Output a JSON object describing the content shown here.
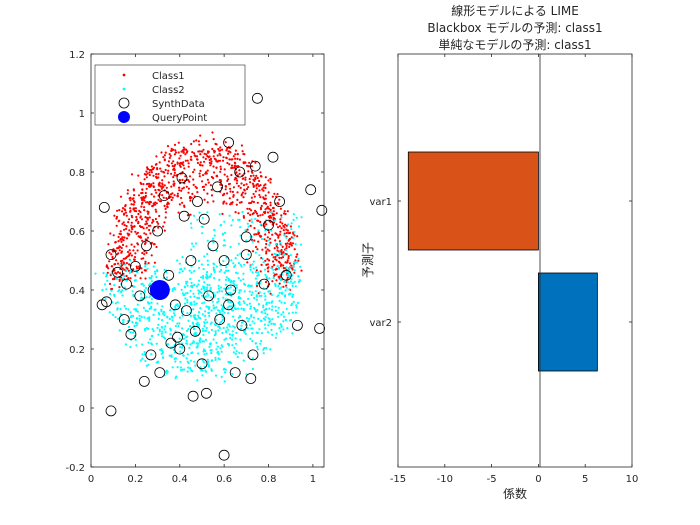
{
  "chart_data": [
    {
      "type": "scatter",
      "title": "",
      "xlabel": "",
      "ylabel": "",
      "xlim": [
        0,
        1.05
      ],
      "ylim": [
        -0.2,
        1.2
      ],
      "xticks": [
        "0",
        "0.2",
        "0.4",
        "0.6",
        "0.8",
        "1"
      ],
      "yticks": [
        "-0.2",
        "0",
        "0.2",
        "0.4",
        "0.6",
        "0.8",
        "1",
        "1.2"
      ],
      "legend": {
        "position": "top-left",
        "entries": [
          "Class1",
          "Class2",
          "SynthData",
          "QueryPoint"
        ]
      },
      "colors": {
        "class1": "#ff0000",
        "class2": "#00ffff",
        "synth": "#000000",
        "query": "#0000ff"
      },
      "series": [
        {
          "name": "Class1",
          "marker": "dot",
          "description_count": 1100
        },
        {
          "name": "Class2",
          "marker": "dot",
          "description_count": 1100
        },
        {
          "name": "SynthData",
          "marker": "open-circle",
          "x": [
            0.06,
            0.09,
            0.75,
            0.99,
            1.04,
            0.05,
            0.07,
            0.93,
            1.03,
            0.6,
            0.09,
            0.46,
            0.52,
            0.62,
            0.85,
            0.8,
            0.7,
            0.55,
            0.45,
            0.35,
            0.28,
            0.22,
            0.15,
            0.18,
            0.4,
            0.5,
            0.65,
            0.72,
            0.3,
            0.25,
            0.38,
            0.58,
            0.68,
            0.42,
            0.48,
            0.33,
            0.2,
            0.12,
            0.88,
            0.78,
            0.63,
            0.53,
            0.43,
            0.36,
            0.27,
            0.57,
            0.67,
            0.74,
            0.82,
            0.47,
            0.39,
            0.31,
            0.24,
            0.16,
            0.6,
            0.7,
            0.51,
            0.41,
            0.62,
            0.73
          ],
          "y": [
            0.68,
            0.52,
            1.05,
            0.74,
            0.67,
            0.35,
            0.36,
            0.28,
            0.27,
            -0.16,
            -0.01,
            0.04,
            0.05,
            0.9,
            0.7,
            0.62,
            0.58,
            0.55,
            0.5,
            0.45,
            0.4,
            0.38,
            0.3,
            0.25,
            0.2,
            0.15,
            0.12,
            0.1,
            0.6,
            0.55,
            0.35,
            0.3,
            0.28,
            0.65,
            0.7,
            0.72,
            0.48,
            0.46,
            0.45,
            0.42,
            0.4,
            0.38,
            0.33,
            0.22,
            0.18,
            0.75,
            0.8,
            0.82,
            0.85,
            0.26,
            0.24,
            0.12,
            0.09,
            0.42,
            0.5,
            0.52,
            0.64,
            0.78,
            0.35,
            0.18
          ]
        },
        {
          "name": "QueryPoint",
          "marker": "filled-circle",
          "x": [
            0.31
          ],
          "y": [
            0.4
          ]
        }
      ]
    },
    {
      "type": "bar",
      "orientation": "horizontal",
      "title": [
        "線形モデルによる LIME",
        "Blackbox モデルの予測: class1",
        "単純なモデルの予測: class1"
      ],
      "xlabel": "係数",
      "ylabel": "予測子",
      "xlim": [
        -15,
        10
      ],
      "xticks": [
        "-15",
        "-10",
        "-5",
        "0",
        "5",
        "10"
      ],
      "categories": [
        "var1",
        "var2"
      ],
      "values": [
        -13.9,
        6.3
      ],
      "colors": [
        "#d95319",
        "#0072bd"
      ]
    }
  ]
}
